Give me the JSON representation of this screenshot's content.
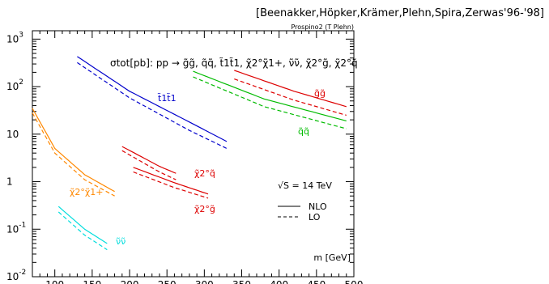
{
  "header": {
    "citation": "[Beenakker,Höpker,Krämer,Plehn,Spira,Zerwas'96-'98]",
    "program": "Prospino2 (T Plehn)"
  },
  "chart_data": {
    "type": "line",
    "title": "σtot[pb]:  pp → g̃g̃, q̃q̃, t̃1t̃1, χ̃2°χ̃1+, ν̃ν̃, χ̃2°g̃, χ̃2°q̃",
    "xlabel": "m [GeV]",
    "ylabel": "",
    "x_range": [
      70,
      500
    ],
    "y_range": [
      0.01,
      1500
    ],
    "y_scale": "log",
    "x_ticks": [
      "100",
      "150",
      "200",
      "250",
      "300",
      "350",
      "400",
      "450",
      "500"
    ],
    "y_ticks": [
      {
        "base": "10",
        "exp": "3"
      },
      {
        "base": "10",
        "exp": "2"
      },
      {
        "base": "10",
        "exp": ""
      },
      {
        "base": "1",
        "exp": ""
      },
      {
        "base": "10",
        "exp": "-1"
      },
      {
        "base": "10",
        "exp": "-2"
      }
    ],
    "annotation": "√S = 14 TeV",
    "legend": {
      "position": "bottom-right",
      "nlo": "NLO",
      "lo": "LO"
    },
    "series": [
      {
        "name": "t̃1t̃1",
        "color": "#0000cc",
        "label_key": "stop",
        "nlo": {
          "x": [
            130,
            200,
            280,
            330
          ],
          "y": [
            430,
            80,
            18,
            7
          ]
        },
        "lo": {
          "x": [
            130,
            200,
            280,
            330
          ],
          "y": [
            320,
            58,
            12,
            5
          ]
        }
      },
      {
        "name": "g̃g̃",
        "color": "#dd0000",
        "label_key": "gluino",
        "nlo": {
          "x": [
            340,
            420,
            490
          ],
          "y": [
            220,
            80,
            38
          ]
        },
        "lo": {
          "x": [
            340,
            420,
            490
          ],
          "y": [
            145,
            52,
            25
          ]
        }
      },
      {
        "name": "q̃q̃",
        "color": "#00bb00",
        "label_key": "squark",
        "nlo": {
          "x": [
            285,
            380,
            490
          ],
          "y": [
            210,
            55,
            19
          ]
        },
        "lo": {
          "x": [
            285,
            380,
            490
          ],
          "y": [
            160,
            38,
            13
          ]
        }
      },
      {
        "name": "χ̃2°q̃",
        "color": "#dd0000",
        "label_key": "n2sq",
        "nlo": {
          "x": [
            190,
            240,
            262
          ],
          "y": [
            5.5,
            2.1,
            1.5
          ]
        },
        "lo": {
          "x": [
            190,
            240,
            262
          ],
          "y": [
            4.5,
            1.6,
            1.1
          ]
        }
      },
      {
        "name": "χ̃2°g̃",
        "color": "#dd0000",
        "label_key": "n2gl",
        "nlo": {
          "x": [
            205,
            260,
            305
          ],
          "y": [
            2.0,
            0.95,
            0.55
          ]
        },
        "lo": {
          "x": [
            205,
            260,
            305
          ],
          "y": [
            1.6,
            0.75,
            0.45
          ]
        }
      },
      {
        "name": "χ̃2°χ̃1+",
        "color": "#ff8800",
        "label_key": "n2c1",
        "nlo": {
          "x": [
            70,
            100,
            140,
            180
          ],
          "y": [
            35,
            5,
            1.4,
            0.62
          ]
        },
        "lo": {
          "x": [
            70,
            100,
            140,
            180
          ],
          "y": [
            28,
            4,
            1.1,
            0.5
          ]
        }
      },
      {
        "name": "ν̃ν̃",
        "color": "#00dddd",
        "label_key": "snu",
        "nlo": {
          "x": [
            105,
            140,
            170
          ],
          "y": [
            0.3,
            0.1,
            0.05
          ]
        },
        "lo": {
          "x": [
            105,
            140,
            170
          ],
          "y": [
            0.23,
            0.075,
            0.037
          ]
        }
      }
    ]
  }
}
